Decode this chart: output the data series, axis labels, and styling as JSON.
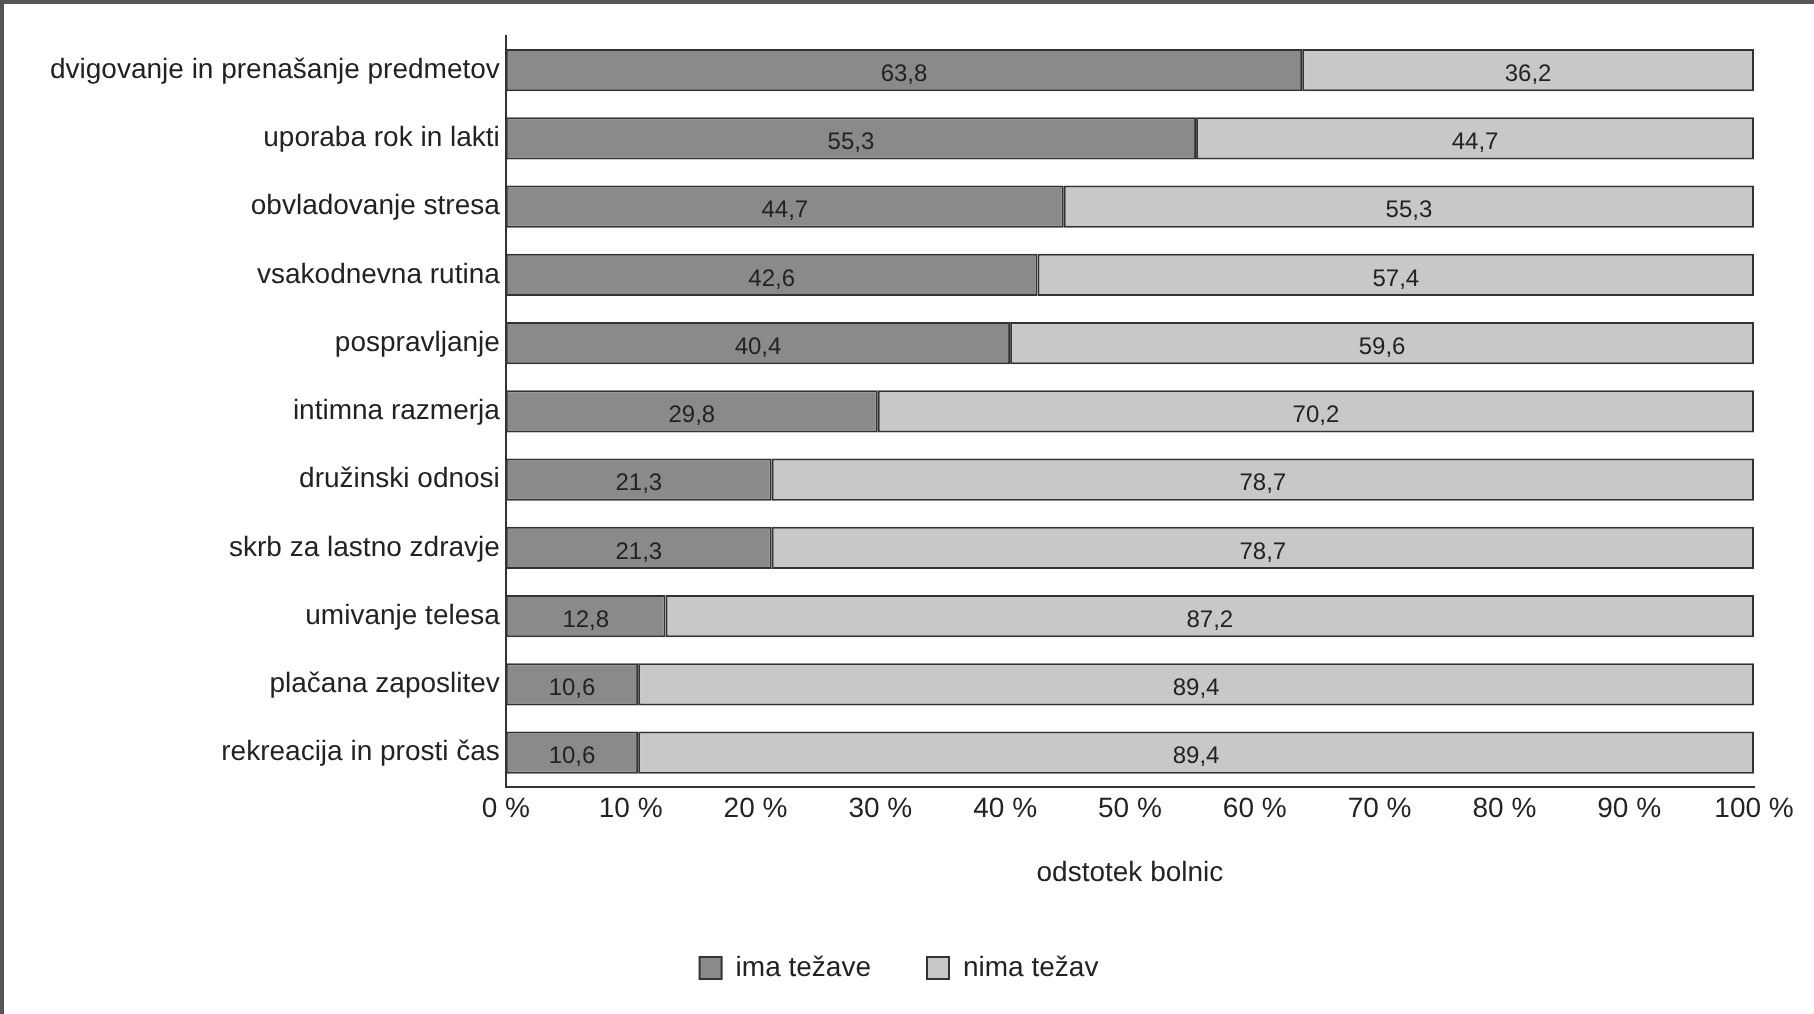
{
  "chart_data": {
    "type": "bar",
    "orientation": "horizontal",
    "stacked": true,
    "xlabel": "odstotek bolnic",
    "categories": [
      "dvigovanje in prenašanje predmetov",
      "uporaba rok in lakti",
      "obvladovanje stresa",
      "vsakodnevna rutina",
      "pospravljanje",
      "intimna razmerja",
      "družinski odnosi",
      "skrb za lastno zdravje",
      "umivanje telesa",
      "plačana zaposlitev",
      "rekreacija in prosti čas"
    ],
    "series": [
      {
        "name": "ima težave",
        "color": "#8a8a8c",
        "values": [
          63.8,
          55.3,
          44.7,
          42.6,
          40.4,
          29.8,
          21.3,
          21.3,
          12.8,
          10.6,
          10.6
        ],
        "value_labels": [
          "63,8",
          "55,3",
          "44,7",
          "42,6",
          "40,4",
          "29,8",
          "21,3",
          "21,3",
          "12,8",
          "10,6",
          "10,6"
        ]
      },
      {
        "name": "nima težav",
        "color": "#c8c8c8",
        "values": [
          36.2,
          44.7,
          55.3,
          57.4,
          59.6,
          70.2,
          78.7,
          78.7,
          87.2,
          89.4,
          89.4
        ],
        "value_labels": [
          "36,2",
          "44,7",
          "55,3",
          "57,4",
          "59,6",
          "70,2",
          "78,7",
          "78,7",
          "87,2",
          "89,4",
          "89,4"
        ]
      }
    ],
    "xlim": [
      0,
      100
    ],
    "xticks": [
      {
        "value": 0,
        "label": "0 %"
      },
      {
        "value": 10,
        "label": "10 %"
      },
      {
        "value": 20,
        "label": "20 %"
      },
      {
        "value": 30,
        "label": "30 %"
      },
      {
        "value": 40,
        "label": "40 %"
      },
      {
        "value": 50,
        "label": "50 %"
      },
      {
        "value": 60,
        "label": "60 %"
      },
      {
        "value": 70,
        "label": "70 %"
      },
      {
        "value": 80,
        "label": "80 %"
      },
      {
        "value": 90,
        "label": "90 %"
      },
      {
        "value": 100,
        "label": "100 %"
      }
    ],
    "grid": false,
    "legend": "bottom"
  }
}
